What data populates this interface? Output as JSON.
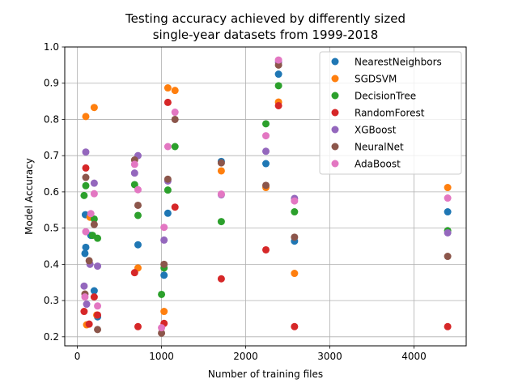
{
  "chart_data": {
    "type": "scatter",
    "title": [
      "Testing accuracy achieved by differently sized",
      "single-year datasets from 1999-2018"
    ],
    "xlabel": "Number of training files",
    "ylabel": "Model Accuracy",
    "xlim": [
      -150,
      4620
    ],
    "ylim": [
      0.175,
      1.0
    ],
    "xticks": [
      0,
      1000,
      2000,
      3000,
      4000
    ],
    "yticks": [
      0.2,
      0.3,
      0.4,
      0.5,
      0.6,
      0.7,
      0.8,
      0.9,
      1.0
    ],
    "xtick_labels": [
      "0",
      "1000",
      "2000",
      "3000",
      "4000"
    ],
    "ytick_labels": [
      "0.2",
      "0.3",
      "0.4",
      "0.5",
      "0.6",
      "0.7",
      "0.8",
      "0.9",
      "1.0"
    ],
    "grid": true,
    "legend_position": "top-right",
    "series": [
      {
        "name": "NearestNeighbors",
        "color": "#1f77b4",
        "x": [
          90,
          95,
          100,
          160,
          200,
          240,
          720,
          1030,
          1075,
          1710,
          2240,
          2390,
          2580,
          4400
        ],
        "y": [
          0.43,
          0.537,
          0.447,
          0.48,
          0.327,
          0.255,
          0.454,
          0.37,
          0.541,
          0.684,
          0.678,
          0.925,
          0.464,
          0.545
        ]
      },
      {
        "name": "SGDSVM",
        "color": "#ff7f0e",
        "x": [
          100,
          110,
          150,
          200,
          230,
          720,
          1030,
          1075,
          1160,
          1710,
          2240,
          2390,
          2580,
          4400
        ],
        "y": [
          0.808,
          0.233,
          0.53,
          0.833,
          0.26,
          0.39,
          0.27,
          0.887,
          0.88,
          0.658,
          0.612,
          0.848,
          0.375,
          0.612
        ]
      },
      {
        "name": "DecisionTree",
        "color": "#2ca02c",
        "x": [
          80,
          100,
          180,
          200,
          240,
          680,
          720,
          1000,
          1030,
          1075,
          1160,
          1710,
          2240,
          2390,
          2580,
          4400
        ],
        "y": [
          0.59,
          0.617,
          0.48,
          0.525,
          0.472,
          0.62,
          0.535,
          0.317,
          0.39,
          0.605,
          0.725,
          0.518,
          0.788,
          0.893,
          0.545,
          0.493
        ]
      },
      {
        "name": "RandomForest",
        "color": "#d62728",
        "x": [
          80,
          100,
          140,
          200,
          240,
          680,
          720,
          1030,
          1075,
          1160,
          1710,
          2240,
          2390,
          2580,
          4400
        ],
        "y": [
          0.27,
          0.666,
          0.235,
          0.31,
          0.26,
          0.377,
          0.228,
          0.237,
          0.847,
          0.558,
          0.36,
          0.44,
          0.838,
          0.228,
          0.228
        ]
      },
      {
        "name": "XGBoost",
        "color": "#9467bd",
        "x": [
          80,
          100,
          110,
          150,
          200,
          240,
          680,
          720,
          1030,
          1075,
          1710,
          2240,
          2390,
          2580,
          4400
        ],
        "y": [
          0.34,
          0.71,
          0.29,
          0.4,
          0.624,
          0.395,
          0.652,
          0.7,
          0.467,
          0.63,
          0.592,
          0.712,
          0.958,
          0.582,
          0.487
        ]
      },
      {
        "name": "NeuralNet",
        "color": "#8c564b",
        "x": [
          90,
          100,
          140,
          200,
          240,
          680,
          720,
          1000,
          1030,
          1075,
          1160,
          1710,
          2240,
          2390,
          2580,
          4400
        ],
        "y": [
          0.318,
          0.64,
          0.41,
          0.51,
          0.22,
          0.688,
          0.563,
          0.21,
          0.4,
          0.635,
          0.8,
          0.68,
          0.618,
          0.95,
          0.475,
          0.422
        ]
      },
      {
        "name": "AdaBoost",
        "color": "#e377c2",
        "x": [
          90,
          100,
          160,
          200,
          240,
          680,
          720,
          1000,
          1030,
          1075,
          1160,
          1710,
          2240,
          2390,
          2580,
          4400
        ],
        "y": [
          0.31,
          0.49,
          0.54,
          0.595,
          0.285,
          0.676,
          0.606,
          0.225,
          0.502,
          0.725,
          0.82,
          0.594,
          0.755,
          0.964,
          0.575,
          0.583
        ]
      }
    ]
  }
}
